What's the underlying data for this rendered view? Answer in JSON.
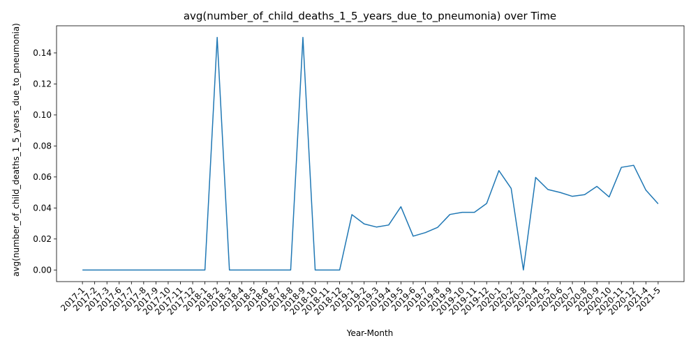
{
  "chart_data": {
    "type": "line",
    "title": "avg(number_of_child_deaths_1_5_years_due_to_pneumonia) over Time",
    "xlabel": "Year-Month",
    "ylabel": "avg(number_of_child_deaths_1_5_years_due_to_pneumonia)",
    "ylim": [
      -0.0075,
      0.1575
    ],
    "yticks": [
      0.0,
      0.02,
      0.04,
      0.06,
      0.08,
      0.1,
      0.12,
      0.14
    ],
    "ytick_labels": [
      "0.00",
      "0.02",
      "0.04",
      "0.06",
      "0.08",
      "0.10",
      "0.12",
      "0.14"
    ],
    "grid": false,
    "line_color": "#1f77b4",
    "categories": [
      "2017-1",
      "2017-2",
      "2017-3",
      "2017-6",
      "2017-7",
      "2017-8",
      "2017-9",
      "2017-10",
      "2017-11",
      "2017-12",
      "2018-1",
      "2018-2",
      "2018-3",
      "2018-4",
      "2018-5",
      "2018-6",
      "2018-7",
      "2018-8",
      "2018-9",
      "2018-10",
      "2018-11",
      "2018-12",
      "2019-1",
      "2019-2",
      "2019-3",
      "2019-4",
      "2019-5",
      "2019-6",
      "2019-7",
      "2019-8",
      "2019-9",
      "2019-10",
      "2019-11",
      "2019-12",
      "2020-1",
      "2020-2",
      "2020-3",
      "2020-4",
      "2020-5",
      "2020-6",
      "2020-7",
      "2020-8",
      "2020-9",
      "2020-10",
      "2020-11",
      "2020-12",
      "2021-4",
      "2021-5"
    ],
    "values": [
      0,
      0,
      0,
      0,
      0,
      0,
      0,
      0,
      0,
      0,
      0,
      0.15,
      0,
      0,
      0,
      0,
      0,
      0,
      0.15,
      0,
      0,
      0,
      0.0357,
      0.0297,
      0.0277,
      0.029,
      0.0408,
      0.0218,
      0.0241,
      0.0275,
      0.0358,
      0.0372,
      0.0372,
      0.0429,
      0.0641,
      0.0526,
      0,
      0.0597,
      0.0519,
      0.05,
      0.0475,
      0.0486,
      0.0539,
      0.0471,
      0.0662,
      0.0675,
      0.0515,
      0.0427
    ]
  }
}
